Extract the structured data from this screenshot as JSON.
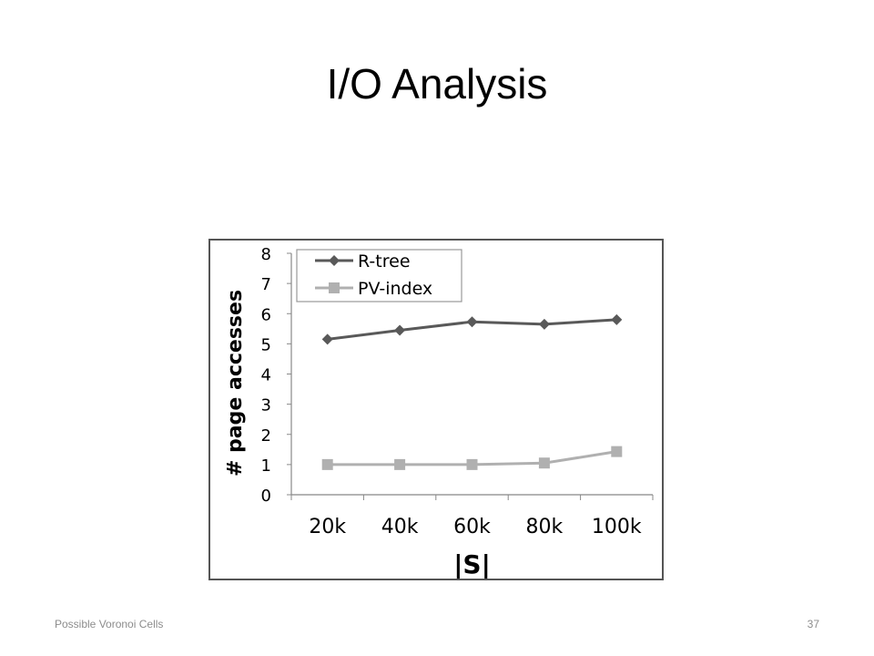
{
  "slide": {
    "title": "I/O Analysis",
    "footer": "Possible Voronoi Cells",
    "page_number": "37"
  },
  "chart_data": {
    "type": "line",
    "categories": [
      "20k",
      "40k",
      "60k",
      "80k",
      "100k"
    ],
    "xlabel": "|S|",
    "ylabel": "# page accesses",
    "ylim": [
      0,
      8
    ],
    "yticks": [
      "0",
      "1",
      "2",
      "3",
      "4",
      "5",
      "6",
      "7",
      "8"
    ],
    "grid": false,
    "legend_position": "top-left",
    "series": [
      {
        "name": "R-tree",
        "values": [
          5.15,
          5.45,
          5.73,
          5.65,
          5.8
        ],
        "color": "#595959",
        "marker": "diamond"
      },
      {
        "name": "PV-index",
        "values": [
          1.0,
          1.0,
          1.0,
          1.05,
          1.43
        ],
        "color": "#b0b0b0",
        "marker": "square"
      }
    ]
  }
}
